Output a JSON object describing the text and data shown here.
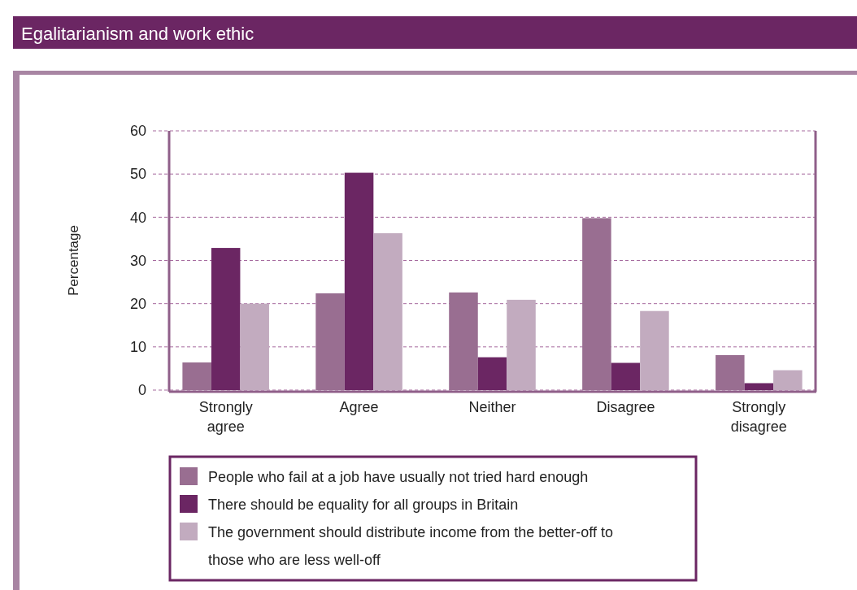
{
  "chart_data": {
    "type": "bar",
    "title": "Egalitarianism and work ethic",
    "ylabel": "Percentage",
    "categories": [
      "Strongly agree",
      "Agree",
      "Neither",
      "Disagree",
      "Strongly disagree"
    ],
    "series": [
      {
        "name": "People who fail at a job have usually not tried hard enough",
        "color": "#996e91",
        "values": [
          6.4,
          22.4,
          22.6,
          39.8,
          8.1
        ]
      },
      {
        "name": "There should be equality for all groups in Britain",
        "color": "#6b2663",
        "values": [
          32.9,
          50.3,
          7.6,
          6.3,
          1.6
        ]
      },
      {
        "name": "The government should distribute income from the better-off to those who are less well-off",
        "color": "#c2abbf",
        "values": [
          20.0,
          36.3,
          20.9,
          18.3,
          4.6
        ]
      }
    ],
    "ylim": [
      0,
      60
    ],
    "yticks": [
      0,
      10,
      20,
      30,
      40,
      50,
      60
    ],
    "grid": "y",
    "legend": "bottom"
  }
}
